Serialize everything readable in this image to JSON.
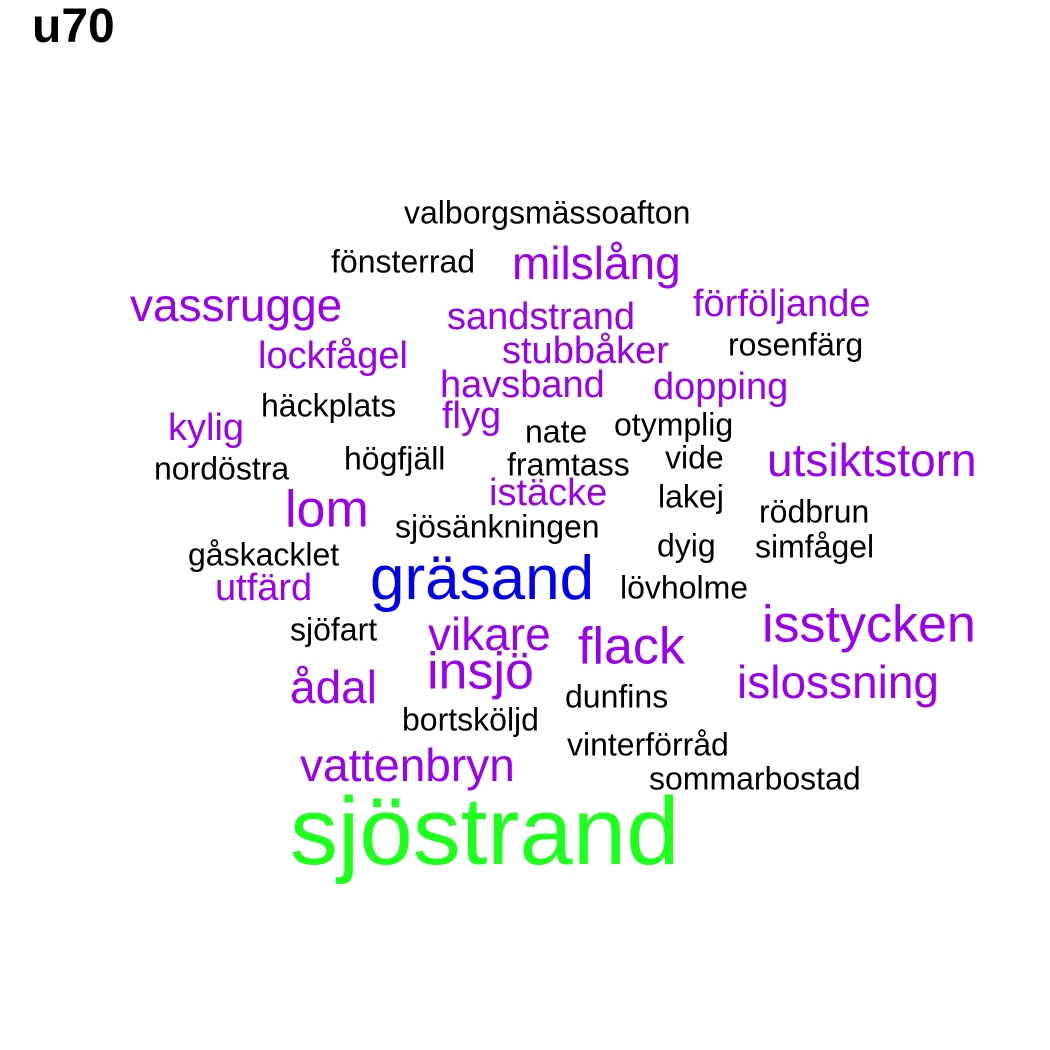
{
  "title": "u70",
  "palette": {
    "black": "#000000",
    "purple": "#9a00ee",
    "blue": "#0000ee",
    "green": "#1eff1e"
  },
  "words": [
    {
      "text": "valborgsmässoafton",
      "tier": 0,
      "color": "black"
    },
    {
      "text": "fönsterrad",
      "tier": 0,
      "color": "black"
    },
    {
      "text": "milslång",
      "tier": 2,
      "color": "purple"
    },
    {
      "text": "vassrugge",
      "tier": 2,
      "color": "purple"
    },
    {
      "text": "sandstrand",
      "tier": 1,
      "color": "purple"
    },
    {
      "text": "förföljande",
      "tier": 1,
      "color": "purple"
    },
    {
      "text": "lockfågel",
      "tier": 1,
      "color": "purple"
    },
    {
      "text": "stubbåker",
      "tier": 1,
      "color": "purple"
    },
    {
      "text": "rosenfärg",
      "tier": 0,
      "color": "black"
    },
    {
      "text": "havsband",
      "tier": 1,
      "color": "purple"
    },
    {
      "text": "dopping",
      "tier": 1,
      "color": "purple"
    },
    {
      "text": "häckplats",
      "tier": 0,
      "color": "black"
    },
    {
      "text": "kylig",
      "tier": 1,
      "color": "purple"
    },
    {
      "text": "flyg",
      "tier": 1,
      "color": "purple"
    },
    {
      "text": "nate",
      "tier": 0,
      "color": "black"
    },
    {
      "text": "otymplig",
      "tier": 0,
      "color": "black"
    },
    {
      "text": "nordöstra",
      "tier": 0,
      "color": "black"
    },
    {
      "text": "högfjäll",
      "tier": 0,
      "color": "black"
    },
    {
      "text": "framtass",
      "tier": 0,
      "color": "black"
    },
    {
      "text": "vide",
      "tier": 0,
      "color": "black"
    },
    {
      "text": "utsiktstorn",
      "tier": 2,
      "color": "purple"
    },
    {
      "text": "istäcke",
      "tier": 1,
      "color": "purple"
    },
    {
      "text": "lom",
      "tier": 3,
      "color": "purple"
    },
    {
      "text": "lakej",
      "tier": 0,
      "color": "black"
    },
    {
      "text": "rödbrun",
      "tier": 0,
      "color": "black"
    },
    {
      "text": "sjösänkningen",
      "tier": 0,
      "color": "black"
    },
    {
      "text": "dyig",
      "tier": 0,
      "color": "black"
    },
    {
      "text": "simfågel",
      "tier": 0,
      "color": "black"
    },
    {
      "text": "gåskacklet",
      "tier": 0,
      "color": "black"
    },
    {
      "text": "gräsand",
      "tier": 4,
      "color": "blue"
    },
    {
      "text": "utfärd",
      "tier": 1,
      "color": "purple"
    },
    {
      "text": "lövholme",
      "tier": 0,
      "color": "black"
    },
    {
      "text": "isstycken",
      "tier": 3,
      "color": "purple"
    },
    {
      "text": "sjöfart",
      "tier": 0,
      "color": "black"
    },
    {
      "text": "vikare",
      "tier": 2,
      "color": "purple"
    },
    {
      "text": "flack",
      "tier": 3,
      "color": "purple"
    },
    {
      "text": "insjö",
      "tier": 3,
      "color": "purple"
    },
    {
      "text": "ådal",
      "tier": 2,
      "color": "purple"
    },
    {
      "text": "islossning",
      "tier": 2,
      "color": "purple"
    },
    {
      "text": "dunfins",
      "tier": 0,
      "color": "black"
    },
    {
      "text": "bortsköljd",
      "tier": 0,
      "color": "black"
    },
    {
      "text": "vinterförråd",
      "tier": 0,
      "color": "black"
    },
    {
      "text": "vattenbryn",
      "tier": 2,
      "color": "purple"
    },
    {
      "text": "sommarbostad",
      "tier": 0,
      "color": "black"
    },
    {
      "text": "sjöstrand",
      "tier": 5,
      "color": "green"
    }
  ]
}
